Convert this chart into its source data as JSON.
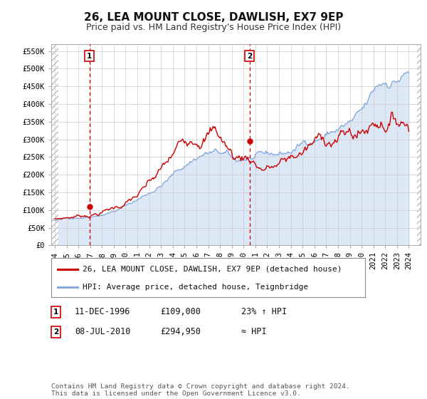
{
  "title": "26, LEA MOUNT CLOSE, DAWLISH, EX7 9EP",
  "subtitle": "Price paid vs. HM Land Registry's House Price Index (HPI)",
  "ylabel_ticks": [
    "£0",
    "£50K",
    "£100K",
    "£150K",
    "£200K",
    "£250K",
    "£300K",
    "£350K",
    "£400K",
    "£450K",
    "£500K",
    "£550K"
  ],
  "ytick_values": [
    0,
    50000,
    100000,
    150000,
    200000,
    250000,
    300000,
    350000,
    400000,
    450000,
    500000,
    550000
  ],
  "ylim": [
    0,
    570000
  ],
  "xlim_start": 1993.7,
  "xlim_end": 2025.0,
  "purchase1": {
    "date_num": 1996.95,
    "price": 109000,
    "label": "1",
    "date_str": "11-DEC-1996",
    "price_str": "£109,000",
    "note": "23% ↑ HPI"
  },
  "purchase2": {
    "date_num": 2010.52,
    "price": 294950,
    "label": "2",
    "date_str": "08-JUL-2010",
    "price_str": "£294,950",
    "note": "≈ HPI"
  },
  "line_color_red": "#cc0000",
  "line_color_blue": "#88aadd",
  "fill_color_blue": "#dce8f5",
  "dot_color": "#cc0000",
  "vline_color": "#cc0000",
  "grid_color": "#cccccc",
  "bg_color": "#ffffff",
  "plot_bg_color": "#ffffff",
  "legend_label_red": "26, LEA MOUNT CLOSE, DAWLISH, EX7 9EP (detached house)",
  "legend_label_blue": "HPI: Average price, detached house, Teignbridge",
  "footer": "Contains HM Land Registry data © Crown copyright and database right 2024.\nThis data is licensed under the Open Government Licence v3.0.",
  "title_fontsize": 11,
  "subtitle_fontsize": 9,
  "tick_fontsize": 7.5,
  "legend_fontsize": 8,
  "xticks": [
    1994,
    1995,
    1996,
    1997,
    1998,
    1999,
    2000,
    2001,
    2002,
    2003,
    2004,
    2005,
    2006,
    2007,
    2008,
    2009,
    2010,
    2011,
    2012,
    2013,
    2014,
    2015,
    2016,
    2017,
    2018,
    2019,
    2020,
    2021,
    2022,
    2023,
    2024
  ],
  "hatch_left_end": 1994.3,
  "hatch_right_start": 2024.7
}
